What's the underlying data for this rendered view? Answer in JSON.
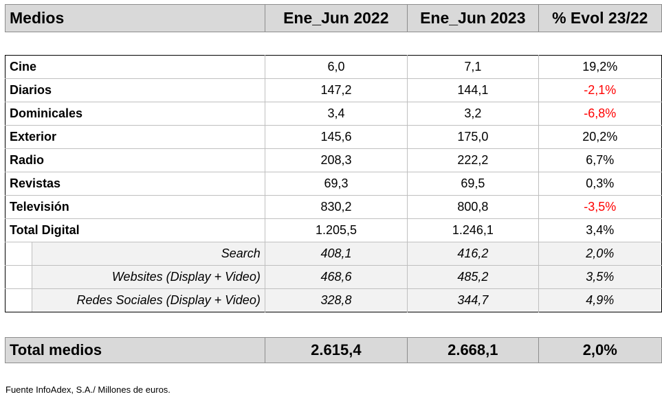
{
  "header": {
    "label": "Medios",
    "col1": "Ene_Jun 2022",
    "col2": "Ene_Jun 2023",
    "col3": "% Evol 23/22"
  },
  "rows": [
    {
      "label": "Cine",
      "v2022": "6,0",
      "v2023": "7,1",
      "evol": "19,2%",
      "negative": false
    },
    {
      "label": "Diarios",
      "v2022": "147,2",
      "v2023": "144,1",
      "evol": "-2,1%",
      "negative": true
    },
    {
      "label": "Dominicales",
      "v2022": "3,4",
      "v2023": "3,2",
      "evol": "-6,8%",
      "negative": true
    },
    {
      "label": "Exterior",
      "v2022": "145,6",
      "v2023": "175,0",
      "evol": "20,2%",
      "negative": false
    },
    {
      "label": "Radio",
      "v2022": "208,3",
      "v2023": "222,2",
      "evol": "6,7%",
      "negative": false
    },
    {
      "label": "Revistas",
      "v2022": "69,3",
      "v2023": "69,5",
      "evol": "0,3%",
      "negative": false
    },
    {
      "label": "Televisión",
      "v2022": "830,2",
      "v2023": "800,8",
      "evol": "-3,5%",
      "negative": true
    },
    {
      "label": "Total Digital",
      "v2022": "1.205,5",
      "v2023": "1.246,1",
      "evol": "3,4%",
      "negative": false
    }
  ],
  "subrows": [
    {
      "label": "Search",
      "v2022": "408,1",
      "v2023": "416,2",
      "evol": "2,0%"
    },
    {
      "label": "Websites (Display + Video)",
      "v2022": "468,6",
      "v2023": "485,2",
      "evol": "3,5%"
    },
    {
      "label": "Redes Sociales (Display + Video)",
      "v2022": "328,8",
      "v2023": "344,7",
      "evol": "4,9%"
    }
  ],
  "total": {
    "label": "Total medios",
    "v2022": "2.615,4",
    "v2023": "2.668,1",
    "evol": "2,0%"
  },
  "footer": "Fuente InfoAdex, S.A./ Millones de euros.",
  "colors": {
    "negative": "#ff0000",
    "header_bg": "#d9d9d9",
    "sub_bg": "#f2f2f2"
  }
}
